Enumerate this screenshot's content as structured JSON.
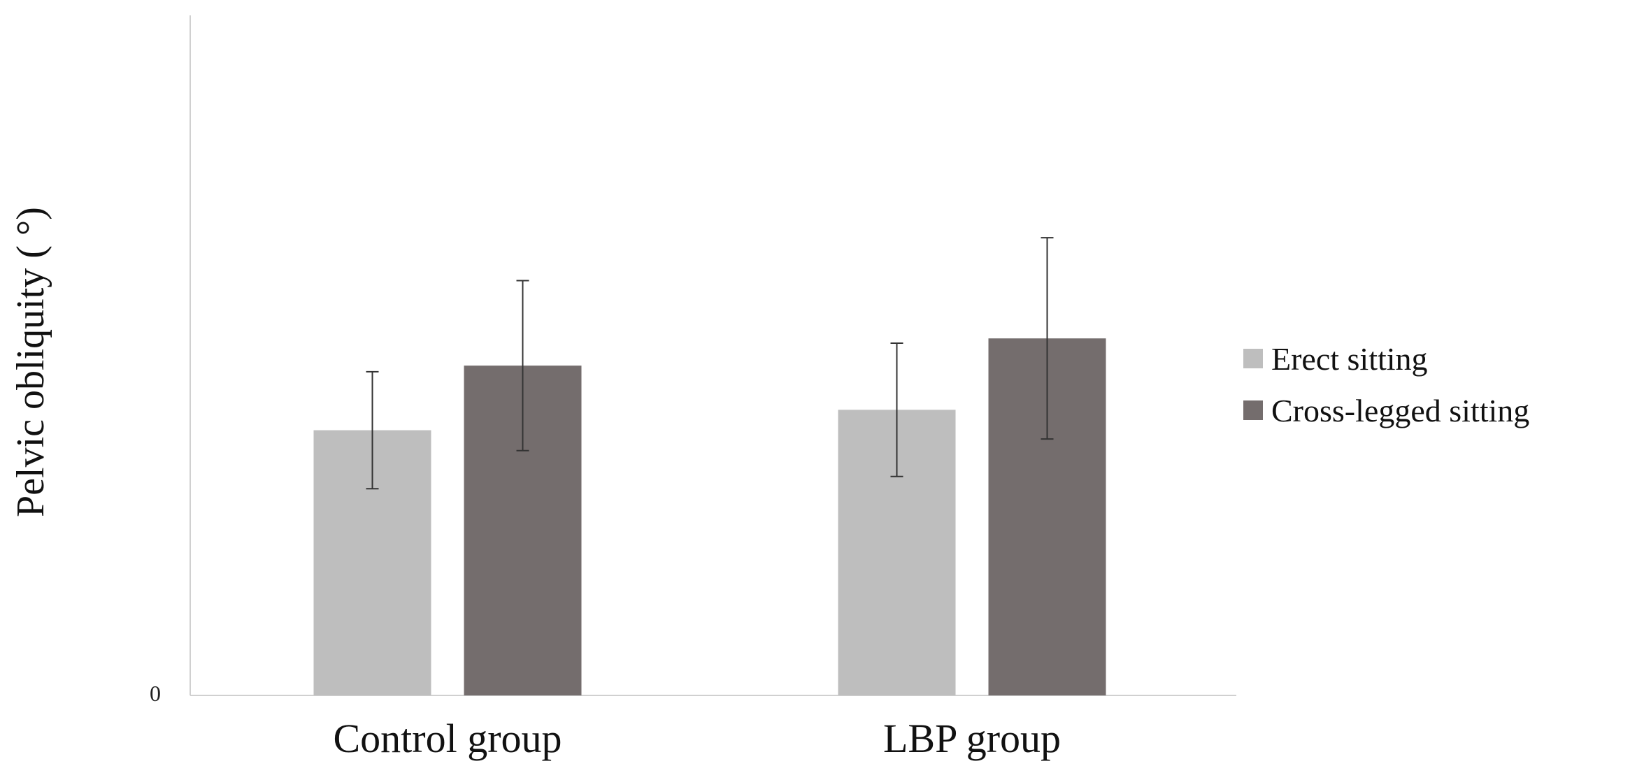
{
  "chart_data": {
    "type": "bar",
    "categories": [
      "Control group",
      "LBP group"
    ],
    "series": [
      {
        "name": "Erect sitting",
        "values": [
          3.9,
          4.2
        ],
        "errors": [
          0.86,
          0.98
        ],
        "color": "#bebebe"
      },
      {
        "name": "Cross-legged sitting",
        "values": [
          4.85,
          5.25
        ],
        "errors": [
          1.25,
          1.48
        ],
        "color": "#746d6d"
      }
    ],
    "xlabel": "",
    "ylabel": "Pelvic obliquity ( °)",
    "ylim": [
      0,
      10
    ],
    "yticks": [
      "0"
    ],
    "grid": false,
    "legend_position": "right"
  }
}
